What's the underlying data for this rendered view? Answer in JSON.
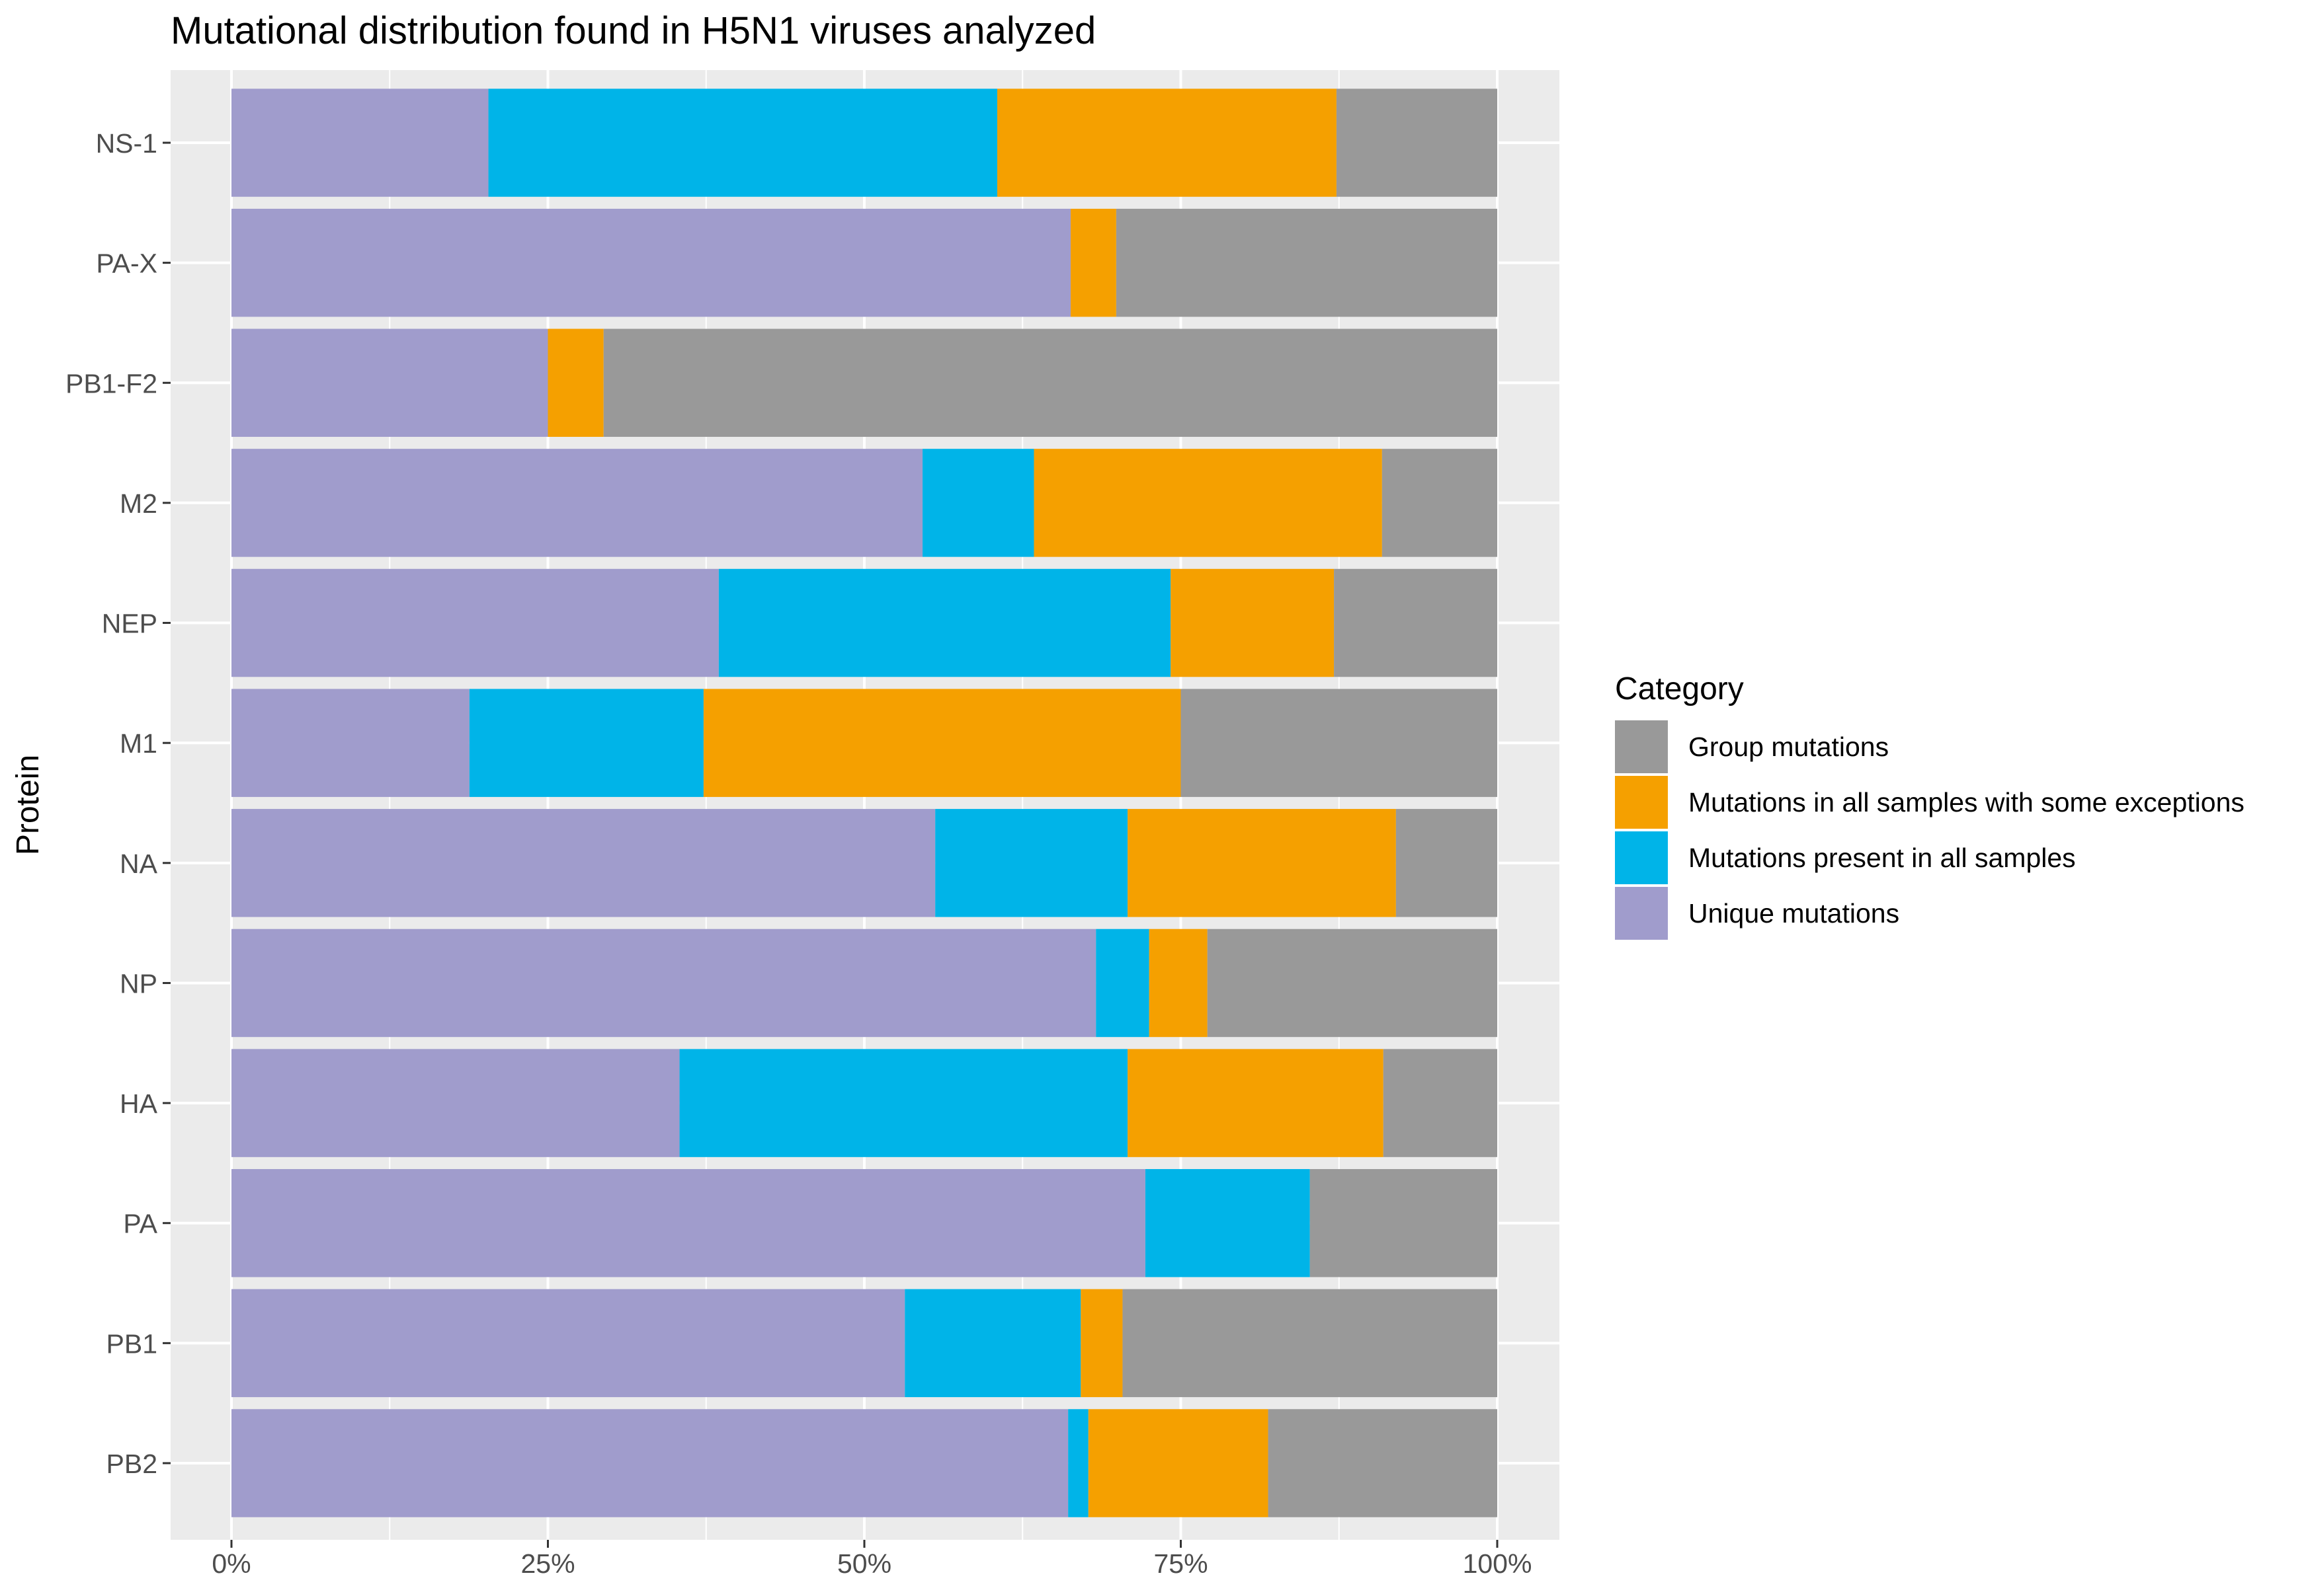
{
  "chart_data": {
    "type": "bar",
    "orientation": "horizontal",
    "stacked": "percent",
    "title": "Mutational distribution found in H5N1 viruses analyzed",
    "ylabel": "Protein",
    "xlabel": "",
    "xlim": [
      0,
      100
    ],
    "x_ticks": [
      {
        "value": 0,
        "label": "0%"
      },
      {
        "value": 25,
        "label": "25%"
      },
      {
        "value": 50,
        "label": "50%"
      },
      {
        "value": 75,
        "label": "75%"
      },
      {
        "value": 100,
        "label": "100%"
      }
    ],
    "grid": true,
    "legend": {
      "title": "Category",
      "position": "right",
      "entries": [
        {
          "label": "Group mutations",
          "color": "#999999"
        },
        {
          "label": "Mutations in all samples with some exceptions",
          "color": "#F5A000"
        },
        {
          "label": "Mutations  present in all samples",
          "color": "#00B4E8"
        },
        {
          "label": "Unique mutations",
          "color": "#A09CCC"
        }
      ]
    },
    "categories": [
      "NS-1",
      "PA-X",
      "PB1-F2",
      "M2",
      "NEP",
      "M1",
      "NA",
      "NP",
      "HA",
      "PA",
      "PB1",
      "PB2"
    ],
    "series": [
      {
        "name": "Unique mutations",
        "color": "#A09CCC",
        "values": [
          20.3,
          66.3,
          25.0,
          54.6,
          38.5,
          18.8,
          55.6,
          68.3,
          35.4,
          72.2,
          53.2,
          66.1
        ]
      },
      {
        "name": "Mutations  present in all samples",
        "color": "#00B4E8",
        "values": [
          40.2,
          0.0,
          0.0,
          8.8,
          35.7,
          18.5,
          15.2,
          4.2,
          35.4,
          13.0,
          13.9,
          1.6
        ]
      },
      {
        "name": "Mutations in all samples with some exceptions",
        "color": "#F5A000",
        "values": [
          26.8,
          3.6,
          4.4,
          27.5,
          12.9,
          37.7,
          21.2,
          4.6,
          20.2,
          0.0,
          3.3,
          14.2
        ]
      },
      {
        "name": "Group mutations",
        "color": "#999999",
        "values": [
          12.7,
          30.1,
          70.6,
          9.1,
          12.9,
          25.0,
          8.0,
          22.9,
          9.0,
          14.8,
          29.6,
          18.1
        ]
      }
    ]
  }
}
